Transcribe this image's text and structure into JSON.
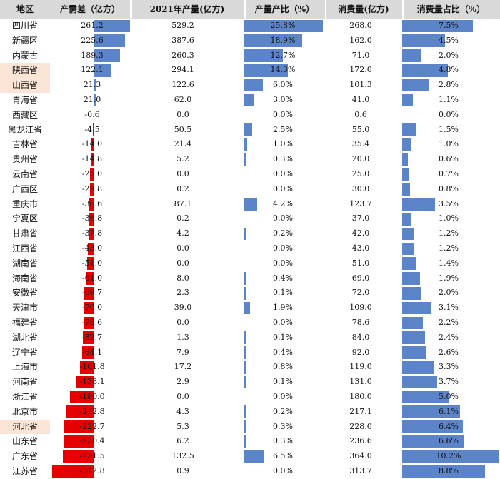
{
  "chart_data": {
    "type": "table",
    "columns": [
      "地区",
      "产需差（亿方）",
      "2021年产量(亿方)",
      "产量产比（%）",
      "消费量(亿方)",
      "消费量占比（%）"
    ],
    "rows": [
      {
        "region": "四川省",
        "diff": "261.2",
        "prod": "529.2",
        "prod_share": "25.8%",
        "cons": "268.0",
        "cons_share": "7.5%"
      },
      {
        "region": "新疆区",
        "diff": "225.6",
        "prod": "387.6",
        "prod_share": "18.9%",
        "cons": "162.0",
        "cons_share": "4.5%"
      },
      {
        "region": "内蒙古",
        "diff": "189.3",
        "prod": "260.3",
        "prod_share": "12.7%",
        "cons": "71.0",
        "cons_share": "2.0%"
      },
      {
        "region": "陕西省",
        "diff": "122.1",
        "prod": "294.1",
        "prod_share": "14.3%",
        "cons": "172.0",
        "cons_share": "4.8%",
        "highlight": true
      },
      {
        "region": "山西省",
        "diff": "21.3",
        "prod": "122.6",
        "prod_share": "6.0%",
        "cons": "101.3",
        "cons_share": "2.8%",
        "highlight": true
      },
      {
        "region": "青海省",
        "diff": "21.0",
        "prod": "62.0",
        "prod_share": "3.0%",
        "cons": "41.0",
        "cons_share": "1.1%"
      },
      {
        "region": "西藏区",
        "diff": "-0.6",
        "prod": "0.0",
        "prod_share": "0.0%",
        "cons": "0.6",
        "cons_share": "0.0%"
      },
      {
        "region": "黑龙江省",
        "diff": "-4.5",
        "prod": "50.5",
        "prod_share": "2.5%",
        "cons": "55.0",
        "cons_share": "1.5%"
      },
      {
        "region": "吉林省",
        "diff": "-14.0",
        "prod": "21.4",
        "prod_share": "1.0%",
        "cons": "35.4",
        "cons_share": "1.0%"
      },
      {
        "region": "贵州省",
        "diff": "-14.8",
        "prod": "5.2",
        "prod_share": "0.3%",
        "cons": "20.0",
        "cons_share": "0.6%"
      },
      {
        "region": "云南省",
        "diff": "-25.0",
        "prod": "0.0",
        "prod_share": "0.0%",
        "cons": "25.0",
        "cons_share": "0.7%"
      },
      {
        "region": "广西区",
        "diff": "-29.8",
        "prod": "0.2",
        "prod_share": "0.0%",
        "cons": "30.0",
        "cons_share": "0.8%"
      },
      {
        "region": "重庆市",
        "diff": "-36.6",
        "prod": "87.1",
        "prod_share": "4.2%",
        "cons": "123.7",
        "cons_share": "3.5%"
      },
      {
        "region": "宁夏区",
        "diff": "-36.8",
        "prod": "0.2",
        "prod_share": "0.0%",
        "cons": "37.0",
        "cons_share": "1.0%"
      },
      {
        "region": "甘肃省",
        "diff": "-37.8",
        "prod": "4.2",
        "prod_share": "0.2%",
        "cons": "42.0",
        "cons_share": "1.2%"
      },
      {
        "region": "江西省",
        "diff": "-43.0",
        "prod": "0.0",
        "prod_share": "0.0%",
        "cons": "43.0",
        "cons_share": "1.2%"
      },
      {
        "region": "湖南省",
        "diff": "-51.0",
        "prod": "0.0",
        "prod_share": "0.0%",
        "cons": "51.0",
        "cons_share": "1.4%"
      },
      {
        "region": "海南省",
        "diff": "-61.0",
        "prod": "8.0",
        "prod_share": "0.4%",
        "cons": "69.0",
        "cons_share": "1.9%"
      },
      {
        "region": "安徽省",
        "diff": "-69.7",
        "prod": "2.3",
        "prod_share": "0.1%",
        "cons": "72.0",
        "cons_share": "2.0%"
      },
      {
        "region": "天津市",
        "diff": "-70.0",
        "prod": "39.0",
        "prod_share": "1.9%",
        "cons": "109.0",
        "cons_share": "3.1%"
      },
      {
        "region": "福建省",
        "diff": "-78.6",
        "prod": "0.0",
        "prod_share": "0.0%",
        "cons": "78.6",
        "cons_share": "2.2%"
      },
      {
        "region": "湖北省",
        "diff": "-82.7",
        "prod": "1.3",
        "prod_share": "0.1%",
        "cons": "84.0",
        "cons_share": "2.4%"
      },
      {
        "region": "辽宁省",
        "diff": "-84.1",
        "prod": "7.9",
        "prod_share": "0.4%",
        "cons": "92.0",
        "cons_share": "2.6%"
      },
      {
        "region": "上海市",
        "diff": "-101.8",
        "prod": "17.2",
        "prod_share": "0.8%",
        "cons": "119.0",
        "cons_share": "3.3%"
      },
      {
        "region": "河南省",
        "diff": "-128.1",
        "prod": "2.9",
        "prod_share": "0.1%",
        "cons": "131.0",
        "cons_share": "3.7%"
      },
      {
        "region": "浙江省",
        "diff": "-180.0",
        "prod": "0.0",
        "prod_share": "0.0%",
        "cons": "180.0",
        "cons_share": "5.0%"
      },
      {
        "region": "北京市",
        "diff": "-212.8",
        "prod": "4.3",
        "prod_share": "0.2%",
        "cons": "217.1",
        "cons_share": "6.1%"
      },
      {
        "region": "河北省",
        "diff": "-222.7",
        "prod": "5.3",
        "prod_share": "0.3%",
        "cons": "228.0",
        "cons_share": "6.4%",
        "highlight": true
      },
      {
        "region": "山东省",
        "diff": "-230.4",
        "prod": "6.2",
        "prod_share": "0.3%",
        "cons": "236.6",
        "cons_share": "6.6%"
      },
      {
        "region": "广东省",
        "diff": "-231.5",
        "prod": "132.5",
        "prod_share": "6.5%",
        "cons": "364.0",
        "cons_share": "10.2%"
      },
      {
        "region": "江苏省",
        "diff": "-312.8",
        "prod": "0.9",
        "prod_share": "0.0%",
        "cons": "313.7",
        "cons_share": "8.8%"
      }
    ],
    "diff_range": [
      -320,
      260
    ],
    "prod_share_max": 26.0,
    "cons_share_max": 10.2
  },
  "colors": {
    "positive_bar": "#5b85c8",
    "negative_bar": "#e60000",
    "share_bar": "#5b85c8",
    "header_bg": "#d9d9d9",
    "highlight_bg": "#fbe5d6"
  }
}
